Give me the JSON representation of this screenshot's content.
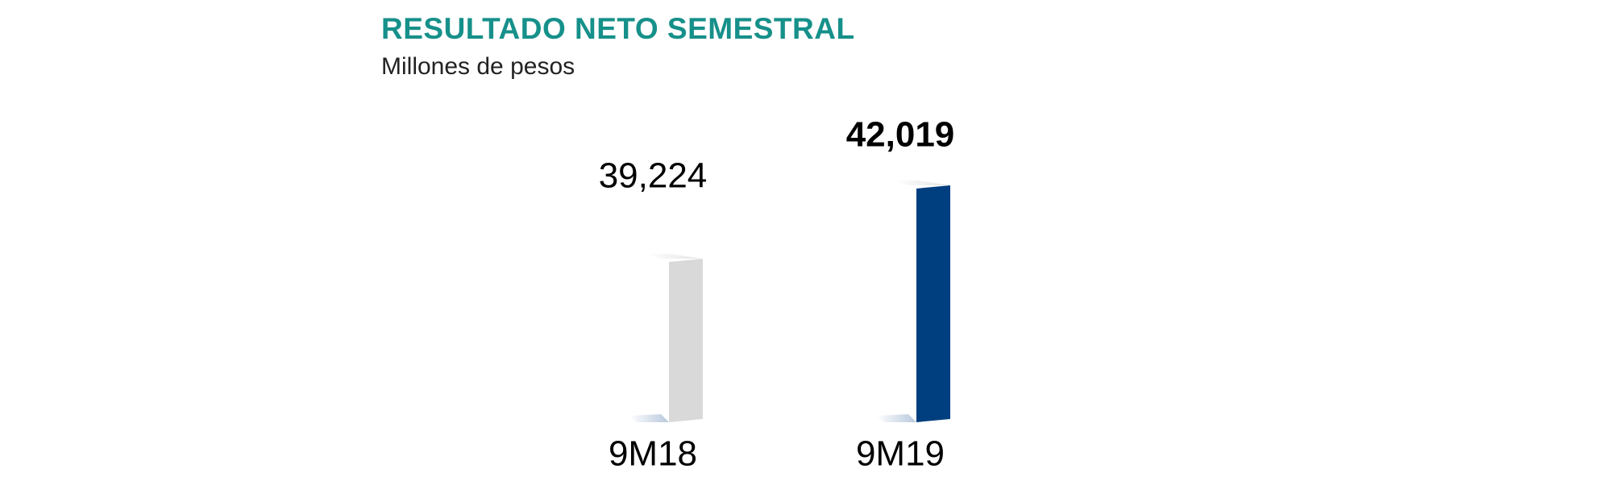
{
  "chart_data": {
    "type": "bar",
    "title": "RESULTADO NETO SEMESTRAL",
    "subtitle": "Millones de pesos",
    "categories": [
      "9M18",
      "9M19"
    ],
    "values": [
      39224,
      42019
    ],
    "value_labels": [
      "39,224",
      "42,019"
    ],
    "colors": [
      "#d9d9d9",
      "#003f7f"
    ],
    "ylim": [
      33000,
      43000
    ]
  }
}
